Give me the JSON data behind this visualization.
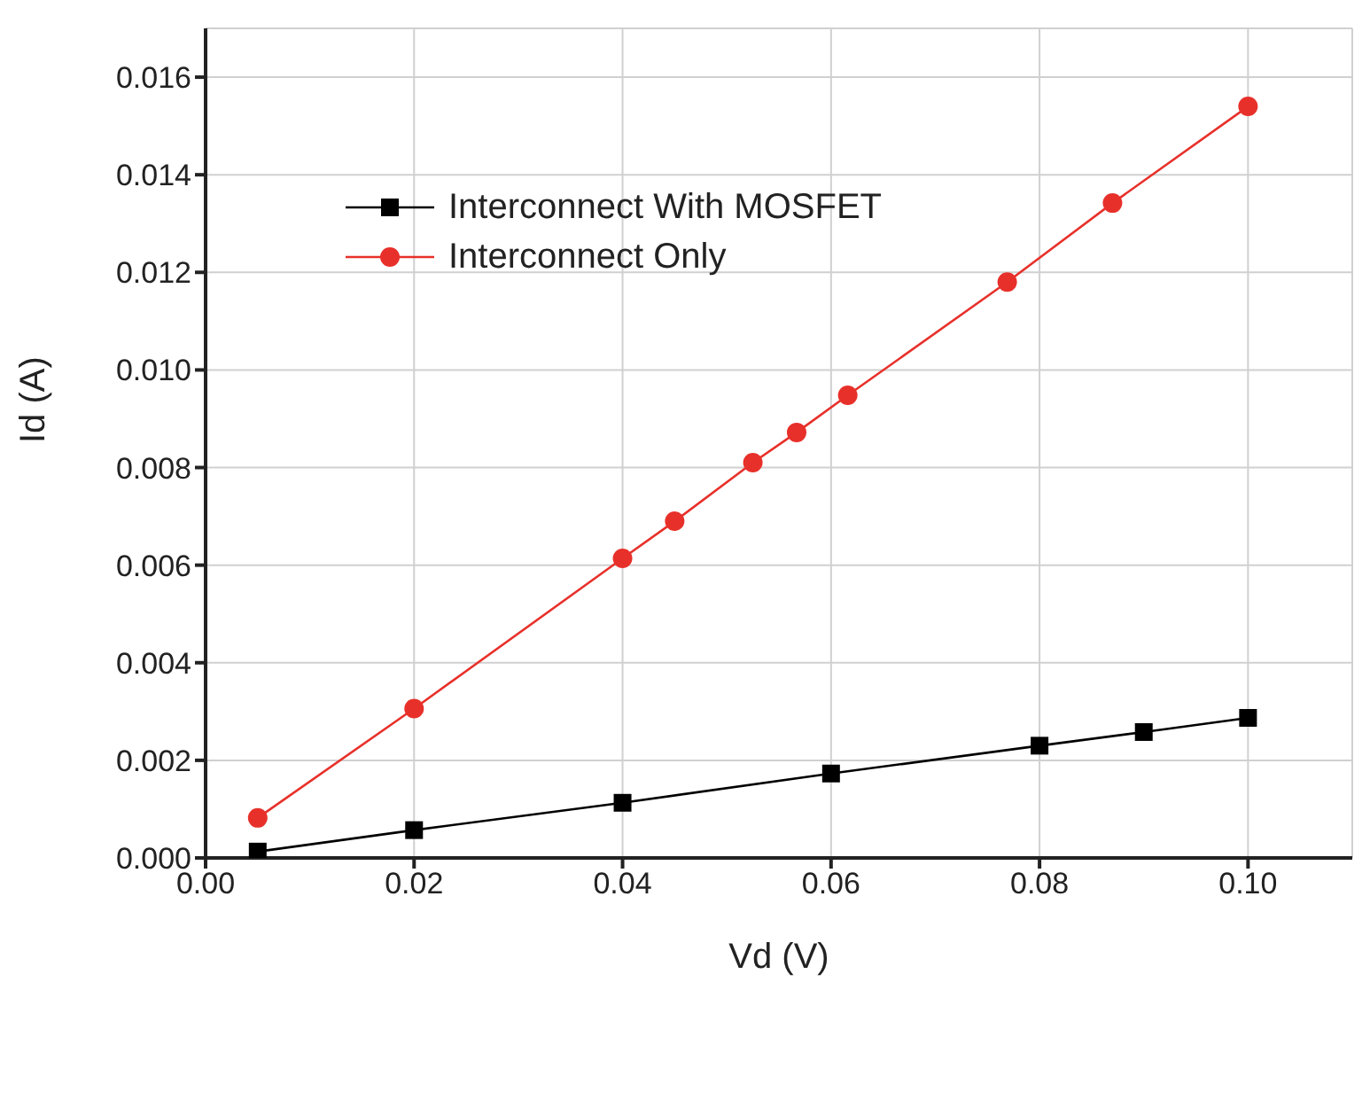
{
  "chart_data": {
    "type": "line",
    "xlabel": "Vd (V)",
    "ylabel": "Id (A)",
    "xlim": [
      0,
      0.11
    ],
    "ylim": [
      0,
      0.017
    ],
    "xticks": [
      {
        "value": 0,
        "label": "0.00"
      },
      {
        "value": 0.02,
        "label": "0.02"
      },
      {
        "value": 0.04,
        "label": "0.04"
      },
      {
        "value": 0.06,
        "label": "0.06"
      },
      {
        "value": 0.08,
        "label": "0.08"
      },
      {
        "value": 0.1,
        "label": "0.10"
      }
    ],
    "yticks": [
      {
        "value": 0,
        "label": "0.000"
      },
      {
        "value": 0.002,
        "label": "0.002"
      },
      {
        "value": 0.004,
        "label": "0.004"
      },
      {
        "value": 0.006,
        "label": "0.006"
      },
      {
        "value": 0.008,
        "label": "0.008"
      },
      {
        "value": 0.01,
        "label": "0.010"
      },
      {
        "value": 0.012,
        "label": "0.012"
      },
      {
        "value": 0.014,
        "label": "0.014"
      },
      {
        "value": 0.016,
        "label": "0.016"
      }
    ],
    "grid": true,
    "legend": "top left",
    "line_style": "solid",
    "series": [
      {
        "name": "Interconnect With MOSFET",
        "color": "#000000",
        "marker": "square",
        "x": [
          0.005,
          0.02,
          0.04,
          0.06,
          0.08,
          0.09,
          0.1
        ],
        "values": [
          0.00013,
          0.00057,
          0.00113,
          0.00173,
          0.0023,
          0.00258,
          0.00287
        ]
      },
      {
        "name": "Interconnect Only",
        "color": "#e8302a",
        "marker": "circle",
        "x": [
          0.005,
          0.02,
          0.04,
          0.045,
          0.0525,
          0.0567,
          0.0616,
          0.0769,
          0.087,
          0.1
        ],
        "values": [
          0.00082,
          0.00306,
          0.00614,
          0.0069,
          0.0081,
          0.00872,
          0.00948,
          0.0118,
          0.01342,
          0.0154
        ]
      }
    ]
  }
}
